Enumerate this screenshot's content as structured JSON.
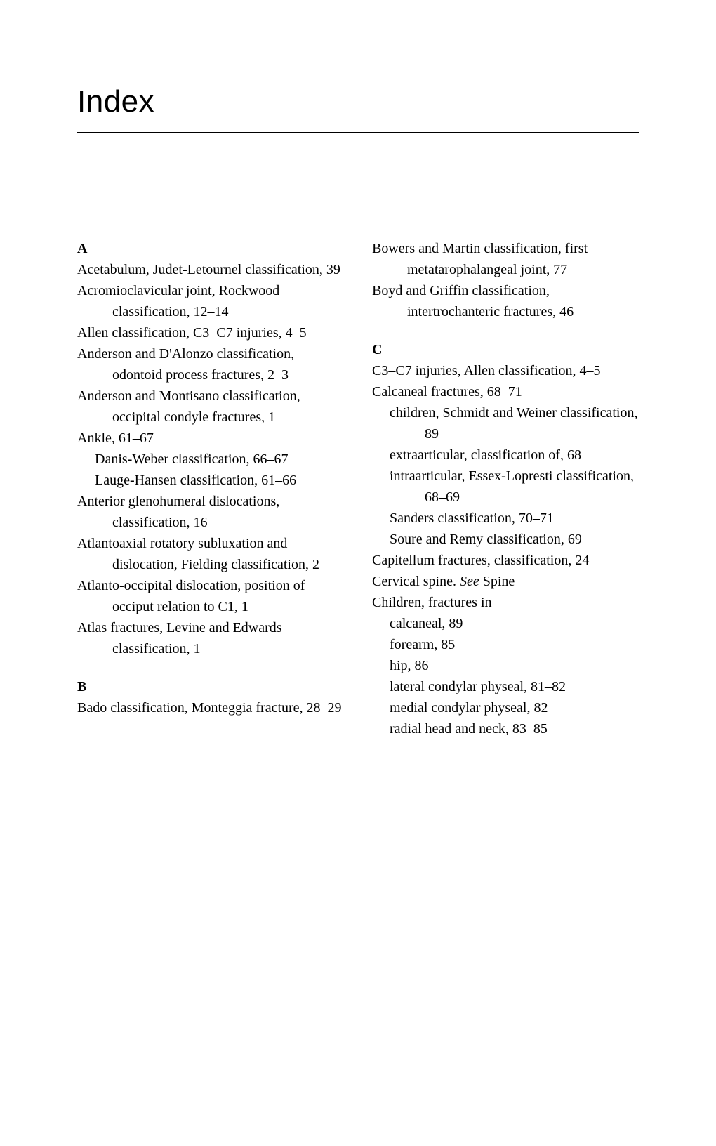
{
  "title": "Index",
  "leftColumn": {
    "sectionA": {
      "heading": "A",
      "entries": [
        "Acetabulum, Judet-Letournel classification, 39",
        "Acromioclavicular joint, Rockwood classification, 12–14",
        "Allen classification, C3–C7 injuries, 4–5",
        "Anderson and D'Alonzo classification, odontoid process fractures, 2–3",
        "Anderson and Montisano classification, occipital condyle fractures, 1",
        "Ankle, 61–67"
      ],
      "subentries1": [
        "Danis-Weber classification, 66–67",
        "Lauge-Hansen classification, 61–66"
      ],
      "entries2": [
        "Anterior glenohumeral dislocations, classification, 16",
        "Atlantoaxial rotatory subluxation and dislocation, Fielding classification, 2",
        "Atlanto-occipital dislocation, position of occiput relation to C1, 1",
        "Atlas fractures, Levine and Edwards classification, 1"
      ]
    },
    "sectionB": {
      "heading": "B",
      "entries": [
        "Bado classification, Monteggia fracture, 28–29"
      ]
    }
  },
  "rightColumn": {
    "topEntries": [
      "Bowers and Martin classification, first metatarophalangeal joint, 77",
      "Boyd and Griffin classification, intertrochanteric fractures, 46"
    ],
    "sectionC": {
      "heading": "C",
      "entries1": [
        "C3–C7 injuries, Allen classification, 4–5",
        "Calcaneal fractures, 68–71"
      ],
      "subentries1": [
        "children, Schmidt and Weiner classification, 89",
        "extraarticular, classification of, 68",
        "intraarticular, Essex-Lopresti classification, 68–69",
        "Sanders classification, 70–71",
        "Soure and Remy classification, 69"
      ],
      "entries2": [
        "Capitellum fractures, classification, 24"
      ],
      "seeEntry": {
        "prefix": "Cervical spine. ",
        "see": "See",
        "suffix": " Spine"
      },
      "entries3": [
        "Children, fractures in"
      ],
      "subentries2": [
        "calcaneal, 89",
        "forearm, 85",
        "hip, 86",
        "lateral condylar physeal, 81–82",
        "medial condylar physeal, 82",
        "radial head and neck, 83–85"
      ]
    }
  }
}
